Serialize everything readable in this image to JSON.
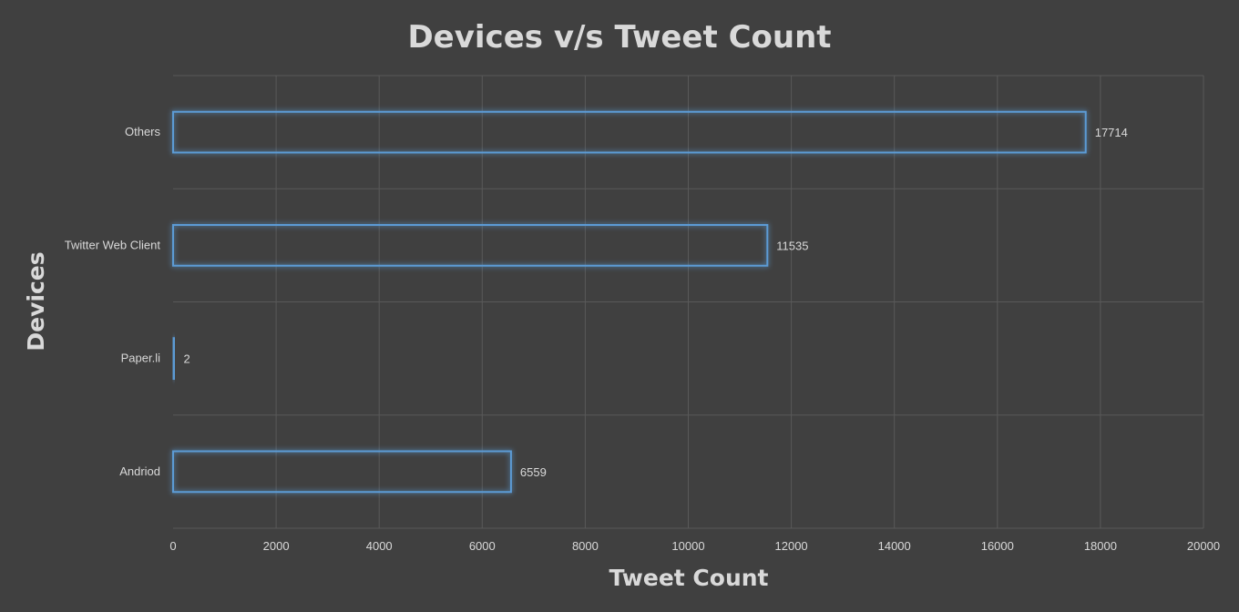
{
  "chart_data": {
    "type": "bar",
    "orientation": "horizontal",
    "title": "Devices v/s Tweet Count",
    "xlabel": "Tweet Count",
    "ylabel": "Devices",
    "categories": [
      "Andriod",
      "Paper.li",
      "Twitter Web Client",
      "Others"
    ],
    "values": [
      6559,
      2,
      11535,
      17714
    ],
    "data_labels": [
      "6559",
      "2",
      "11535",
      "17714"
    ],
    "xlim": [
      0,
      20000
    ],
    "x_ticks": [
      0,
      2000,
      4000,
      6000,
      8000,
      10000,
      12000,
      14000,
      16000,
      18000,
      20000
    ],
    "grid": true,
    "legend": "none",
    "colors": {
      "background": "#404040",
      "bar_outline": "#5b9bd5",
      "grid": "#595959",
      "text": "#d9d9d9"
    }
  }
}
